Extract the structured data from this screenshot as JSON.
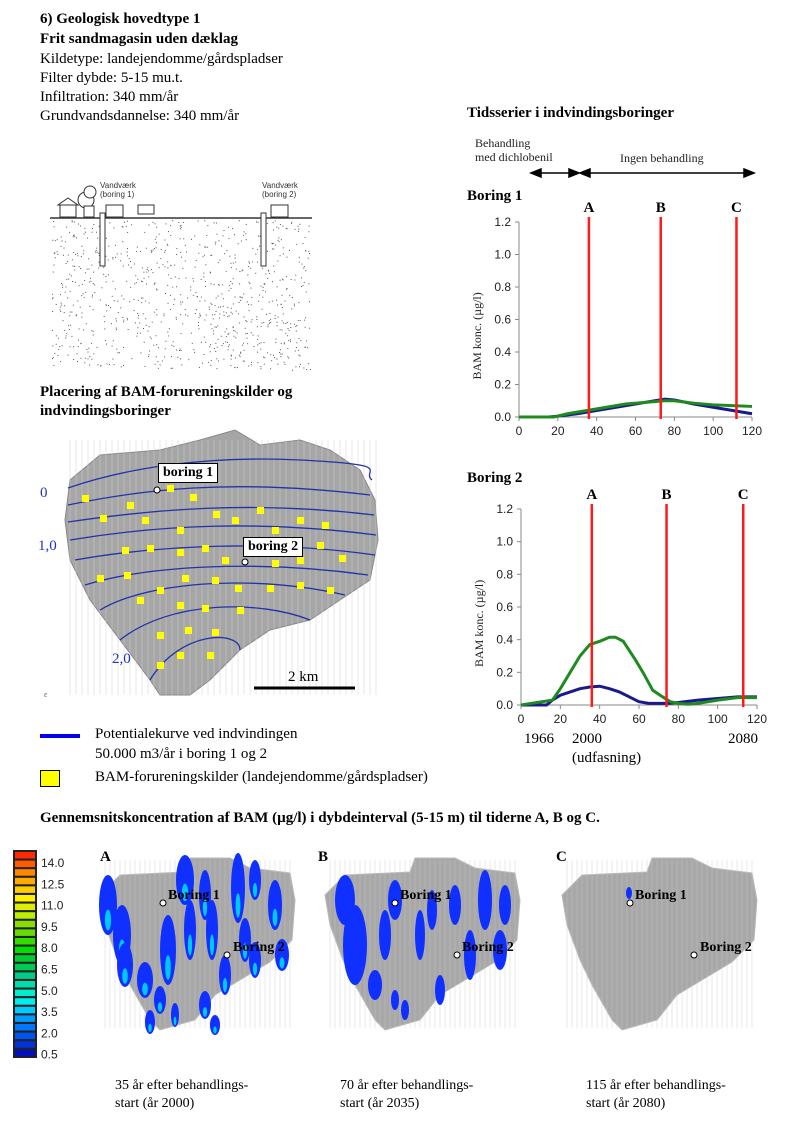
{
  "header": {
    "title": "6) Geologisk hovedtype 1",
    "subtitle": "Frit sandmagasin uden dæklag",
    "lines": [
      "Kildetype: landejendomme/gårdspladser",
      "Filter dybde: 5-15 mu.t.",
      "Infiltration: 340 mm/år",
      "Grundvandsdannelse: 340 mm/år"
    ]
  },
  "profile": {
    "well1_label": "Vandværk",
    "well1_sub": "(boring 1)",
    "well2_label": "Vandværk",
    "well2_sub": "(boring 2)"
  },
  "map_section": {
    "title_line1": "Placering af BAM-forureningskilder og",
    "title_line2": "indvindingsboringer",
    "contour_labels": [
      "0",
      "1,0",
      "2,0"
    ],
    "boring1": "boring 1",
    "boring2": "boring 2",
    "scale": "2 km",
    "corner_mark": "ε"
  },
  "legend": {
    "line_label1": "Potentialekurve ved indvindingen",
    "line_label2": "50.000 m3/år i boring 1 og 2",
    "box_label": "BAM-forureningskilder (landejendomme/gårdspladser)",
    "line_color": "#0000ee",
    "box_color": "#ffff00"
  },
  "timeseries": {
    "title": "Tidsserier i indvindingsboringer",
    "treat_label1": "Behandling",
    "treat_label2": "med dichlobenil",
    "no_treat_label": "Ingen behandling",
    "years": [
      "1966",
      "2000",
      "2080"
    ],
    "phaseout": "(udfasning)"
  },
  "chart_data": [
    {
      "type": "line",
      "title": "Boring 1",
      "ylabel": "BAM konc. (µg/l)",
      "xlabel": "",
      "xlim": [
        0,
        120
      ],
      "ylim": [
        0,
        1.2
      ],
      "xticks": [
        "0",
        "20",
        "40",
        "60",
        "80",
        "100",
        "120"
      ],
      "yticks": [
        "0.0",
        "0.2",
        "0.4",
        "0.6",
        "0.8",
        "1.0",
        "1.2"
      ],
      "markers": [
        {
          "label": "A",
          "x": 36
        },
        {
          "label": "B",
          "x": 73
        },
        {
          "label": "C",
          "x": 112
        }
      ],
      "series": [
        {
          "name": "blue",
          "color": "#1a1a8c",
          "x": [
            0,
            15,
            20,
            30,
            40,
            50,
            60,
            70,
            75,
            80,
            90,
            100,
            110,
            120
          ],
          "y": [
            0,
            0,
            0.005,
            0.02,
            0.04,
            0.06,
            0.08,
            0.1,
            0.11,
            0.105,
            0.08,
            0.06,
            0.04,
            0.02
          ]
        },
        {
          "name": "green",
          "color": "#1f8a1f",
          "x": [
            0,
            18,
            25,
            35,
            45,
            55,
            65,
            75,
            80,
            90,
            100,
            110,
            120
          ],
          "y": [
            0,
            0,
            0.02,
            0.04,
            0.06,
            0.08,
            0.09,
            0.1,
            0.1,
            0.085,
            0.075,
            0.07,
            0.065
          ]
        }
      ]
    },
    {
      "type": "line",
      "title": "Boring 2",
      "ylabel": "BAM konc. (µg/l)",
      "xlabel": "",
      "xlim": [
        0,
        120
      ],
      "ylim": [
        0,
        1.2
      ],
      "xticks": [
        "0",
        "20",
        "40",
        "60",
        "80",
        "100",
        "120"
      ],
      "yticks": [
        "0.0",
        "0.2",
        "0.4",
        "0.6",
        "0.8",
        "1.0",
        "1.2"
      ],
      "markers": [
        {
          "label": "A",
          "x": 36
        },
        {
          "label": "B",
          "x": 74
        },
        {
          "label": "C",
          "x": 113
        }
      ],
      "series": [
        {
          "name": "blue",
          "color": "#1a1a8c",
          "x": [
            0,
            13,
            16,
            20,
            25,
            30,
            35,
            40,
            45,
            50,
            55,
            60,
            65,
            75,
            80,
            90,
            100,
            110,
            120
          ],
          "y": [
            0,
            0,
            0.03,
            0.06,
            0.08,
            0.1,
            0.11,
            0.115,
            0.1,
            0.08,
            0.05,
            0.02,
            0.01,
            0.01,
            0.015,
            0.03,
            0.04,
            0.05,
            0.05
          ]
        },
        {
          "name": "green",
          "color": "#1f8a1f",
          "x": [
            0,
            16,
            20,
            25,
            30,
            35,
            40,
            45,
            48,
            52,
            58,
            62,
            67,
            72,
            76,
            80,
            85,
            90,
            100,
            110,
            120
          ],
          "y": [
            0,
            0.03,
            0.1,
            0.2,
            0.3,
            0.37,
            0.39,
            0.415,
            0.415,
            0.39,
            0.28,
            0.2,
            0.09,
            0.05,
            0.02,
            0.01,
            0.005,
            0.01,
            0.03,
            0.045,
            0.045
          ]
        }
      ]
    }
  ],
  "bottom": {
    "title": "Gennemsnitskoncentration af BAM (µg/l) i dybdeinterval (5-15 m) til tiderne A, B og C.",
    "colorbar_labels": [
      "14.0",
      "12.5",
      "11.0",
      "9.5",
      "8.0",
      "6.5",
      "5.0",
      "3.5",
      "2.0",
      "0.5"
    ],
    "panels": [
      {
        "letter": "A",
        "b1": "Boring 1",
        "b2": "Boring 2",
        "cap1": "35 år efter behandlings-",
        "cap2": "start (år 2000)"
      },
      {
        "letter": "B",
        "b1": "Boring 1",
        "b2": "Boring 2",
        "cap1": "70 år efter behandlings-",
        "cap2": "start (år 2035)"
      },
      {
        "letter": "C",
        "b1": "Boring 1",
        "b2": "Boring 2",
        "cap1": "115 år efter behandlings-",
        "cap2": "start (år 2080)"
      }
    ]
  }
}
